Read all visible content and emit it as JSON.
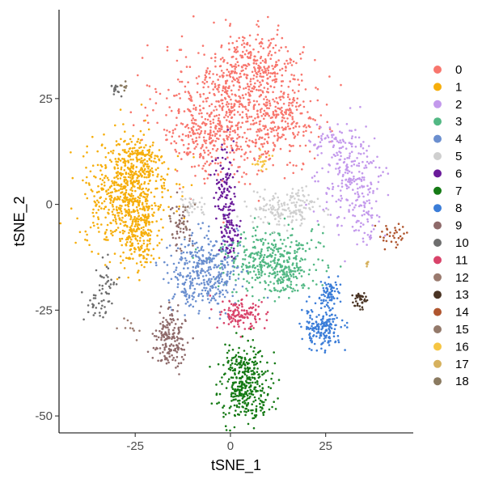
{
  "chart_data": {
    "type": "scatter",
    "title": "",
    "xlabel": "tSNE_1",
    "ylabel": "tSNE_2",
    "xlim": [
      -45,
      48
    ],
    "ylim": [
      -54,
      46
    ],
    "x_ticks": [
      -25,
      0,
      25
    ],
    "x_tick_labels": [
      "-25",
      "0",
      "25"
    ],
    "y_ticks": [
      -50,
      -25,
      0,
      25
    ],
    "y_tick_labels": [
      "-50",
      "-25",
      "0",
      "25"
    ],
    "grid": false,
    "legend_position": "right",
    "legend_title": "",
    "series": [
      {
        "name": "0",
        "color": "#F8766D",
        "clusters": [
          {
            "cx": 0,
            "cy": 22,
            "sx": 9,
            "sy": 8,
            "n": 700
          },
          {
            "cx": 8,
            "cy": 33,
            "sx": 5,
            "sy": 4,
            "n": 220
          },
          {
            "cx": 15,
            "cy": 20,
            "sx": 4,
            "sy": 4,
            "n": 160
          },
          {
            "cx": -8,
            "cy": 16,
            "sx": 4,
            "sy": 3,
            "n": 80
          }
        ]
      },
      {
        "name": "1",
        "color": "#F6AE0B",
        "clusters": [
          {
            "cx": -27,
            "cy": 2,
            "sx": 5.5,
            "sy": 6.5,
            "n": 650
          },
          {
            "cx": -24,
            "cy": 10,
            "sx": 3,
            "sy": 3,
            "n": 120
          },
          {
            "cx": -24,
            "cy": -8,
            "sx": 2,
            "sy": 4,
            "n": 130
          }
        ]
      },
      {
        "name": "2",
        "color": "#C399EC",
        "clusters": [
          {
            "cx": 32,
            "cy": 6,
            "sx": 4,
            "sy": 6,
            "n": 230
          },
          {
            "cx": 26,
            "cy": 15,
            "sx": 2.5,
            "sy": 1.5,
            "n": 40
          },
          {
            "cx": 36,
            "cy": -3,
            "sx": 1.5,
            "sy": 3,
            "n": 40
          }
        ]
      },
      {
        "name": "3",
        "color": "#52B884",
        "clusters": [
          {
            "cx": 10,
            "cy": -13,
            "sx": 6,
            "sy": 4,
            "n": 380
          },
          {
            "cx": 15,
            "cy": -17,
            "sx": 2,
            "sy": 2,
            "n": 60
          }
        ]
      },
      {
        "name": "4",
        "color": "#6B8FCF",
        "clusters": [
          {
            "cx": -7,
            "cy": -16,
            "sx": 4.5,
            "sy": 4.5,
            "n": 380
          }
        ]
      },
      {
        "name": "5",
        "color": "#CFCFCF",
        "clusters": [
          {
            "cx": 15,
            "cy": -1,
            "sx": 4.5,
            "sy": 2,
            "n": 170
          },
          {
            "cx": -10,
            "cy": 0,
            "sx": 2,
            "sy": 1.2,
            "n": 35
          }
        ]
      },
      {
        "name": "6",
        "color": "#6A1B9A",
        "clusters": [
          {
            "cx": -1,
            "cy": 2,
            "sx": 1.5,
            "sy": 6,
            "n": 130
          },
          {
            "cx": 0,
            "cy": -7,
            "sx": 1.2,
            "sy": 2.5,
            "n": 40
          }
        ]
      },
      {
        "name": "7",
        "color": "#157A15",
        "clusters": [
          {
            "cx": 4,
            "cy": -42,
            "sx": 3.3,
            "sy": 4.2,
            "n": 380
          }
        ]
      },
      {
        "name": "8",
        "color": "#3B7DD8",
        "clusters": [
          {
            "cx": 24,
            "cy": -29,
            "sx": 2.6,
            "sy": 2.6,
            "n": 180
          },
          {
            "cx": 26,
            "cy": -21,
            "sx": 1.5,
            "sy": 1.5,
            "n": 70
          }
        ]
      },
      {
        "name": "9",
        "color": "#8E6A6A",
        "clusters": [
          {
            "cx": -16,
            "cy": -32,
            "sx": 2,
            "sy": 3.4,
            "n": 170
          },
          {
            "cx": -13,
            "cy": -5,
            "sx": 1.5,
            "sy": 2.5,
            "n": 45
          }
        ]
      },
      {
        "name": "10",
        "color": "#6E6E6E",
        "clusters": [
          {
            "cx": -36,
            "cy": -23,
            "sx": 1.8,
            "sy": 2.5,
            "n": 30
          },
          {
            "cx": -32,
            "cy": -18,
            "sx": 1.2,
            "sy": 2.5,
            "n": 30
          },
          {
            "cx": -30,
            "cy": 27,
            "sx": 0.8,
            "sy": 0.8,
            "n": 18
          }
        ]
      },
      {
        "name": "11",
        "color": "#D9436A",
        "clusters": [
          {
            "cx": 3,
            "cy": -26,
            "sx": 2.8,
            "sy": 1.8,
            "n": 120
          }
        ]
      },
      {
        "name": "12",
        "color": "#9A7A6E",
        "clusters": [
          {
            "cx": -26,
            "cy": -29,
            "sx": 1.5,
            "sy": 1.5,
            "n": 10
          }
        ]
      },
      {
        "name": "13",
        "color": "#4A3424",
        "clusters": [
          {
            "cx": 34,
            "cy": -23,
            "sx": 1,
            "sy": 1,
            "n": 40
          }
        ]
      },
      {
        "name": "14",
        "color": "#B0562F",
        "clusters": [
          {
            "cx": 43,
            "cy": -7,
            "sx": 2,
            "sy": 1.8,
            "n": 35
          }
        ]
      },
      {
        "name": "15",
        "color": "#93796A",
        "clusters": [
          {
            "cx": -13,
            "cy": -4,
            "sx": 1.5,
            "sy": 3,
            "n": 15
          }
        ]
      },
      {
        "name": "16",
        "color": "#F6C542",
        "clusters": [
          {
            "cx": 8,
            "cy": 10,
            "sx": 1.5,
            "sy": 1,
            "n": 20
          }
        ]
      },
      {
        "name": "17",
        "color": "#D6B15E",
        "clusters": [
          {
            "cx": 36,
            "cy": -14,
            "sx": 0.6,
            "sy": 0.4,
            "n": 5
          }
        ]
      },
      {
        "name": "18",
        "color": "#8A7A60",
        "clusters": [
          {
            "cx": -28,
            "cy": 28,
            "sx": 0.6,
            "sy": 0.6,
            "n": 8
          }
        ]
      }
    ]
  }
}
